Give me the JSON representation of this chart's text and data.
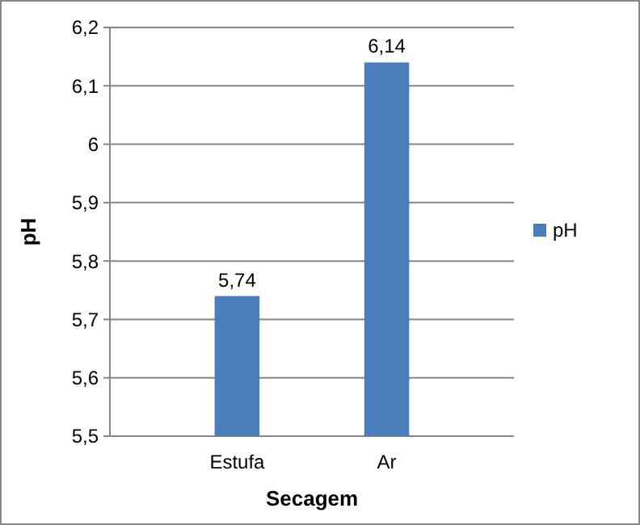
{
  "chart_data": {
    "type": "bar",
    "xlabel": "Secagem",
    "ylabel": "pH",
    "categories": [
      "Estufa",
      "Ar"
    ],
    "series": [
      {
        "name": "pH",
        "color": "#4a7ebb",
        "values": [
          5.74,
          6.14
        ],
        "value_labels": [
          "5,74",
          "6,14"
        ]
      }
    ],
    "ylim": [
      5.5,
      6.2
    ],
    "yticks": [
      {
        "value": 5.5,
        "label": "5,5"
      },
      {
        "value": 5.6,
        "label": "5,6"
      },
      {
        "value": 5.7,
        "label": "5,7"
      },
      {
        "value": 5.8,
        "label": "5,8"
      },
      {
        "value": 5.9,
        "label": "5,9"
      },
      6,
      {
        "value": 6.1,
        "label": "6,1"
      },
      {
        "value": 6.2,
        "label": "6,2"
      }
    ],
    "grid": "y",
    "legend": "right"
  }
}
